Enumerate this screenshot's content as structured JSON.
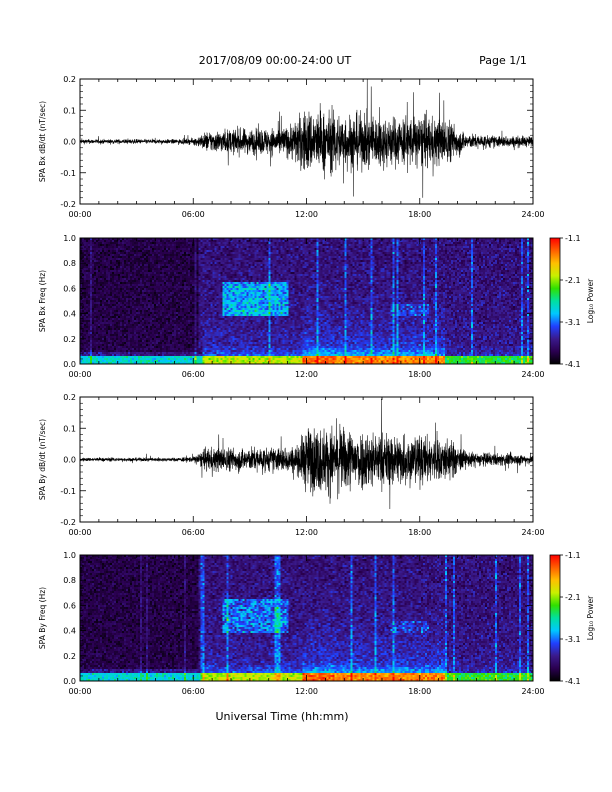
{
  "header": {
    "date_range": "2017/08/09  00:00-24:00 UT",
    "page": "Page 1/1"
  },
  "x_axis_title": "Universal Time (hh:mm)",
  "time_ticks": [
    "00:00",
    "06:00",
    "12:00",
    "18:00",
    "24:00"
  ],
  "colorbar": {
    "label": "Log₁₀ Power",
    "ticks": [
      "-1.1",
      "-2.1",
      "-3.1",
      "-4.1"
    ],
    "range": [
      -4.1,
      -1.1
    ],
    "colors": [
      "#000000",
      "#2a0050",
      "#3a1a8c",
      "#2040ff",
      "#00c8ff",
      "#00e0a0",
      "#30e000",
      "#c8f000",
      "#ffc000",
      "#ff6000",
      "#ff0000"
    ]
  },
  "chart_data": [
    {
      "type": "line",
      "ylabel": "SPA Bx dB/dt (nT/sec)",
      "ylim": [
        -0.2,
        0.2
      ],
      "yticks": [
        "0.2",
        "0.1",
        "0.0",
        "-0.1",
        "-0.2"
      ],
      "xlim_hours": [
        0,
        24
      ],
      "series": [
        {
          "amplitude_envelope": {
            "x_hours": [
              0,
              5,
              6,
              6.8,
              8,
              10,
              11,
              12,
              13,
              15,
              16,
              18,
              19.5,
              20.5,
              22,
              24
            ],
            "amp": [
              0.015,
              0.015,
              0.02,
              0.07,
              0.08,
              0.09,
              0.1,
              0.22,
              0.2,
              0.18,
              0.17,
              0.17,
              0.15,
              0.05,
              0.04,
              0.035
            ]
          }
        }
      ]
    },
    {
      "type": "heatmap",
      "ylabel": "SPA Bx Freq (Hz)",
      "ylim": [
        0.0,
        1.0
      ],
      "yticks": [
        "1.0",
        "0.8",
        "0.6",
        "0.4",
        "0.2",
        "0.0"
      ],
      "xlim_hours": [
        0,
        24
      ],
      "z_range_log10_power": [
        -4.1,
        -1.1
      ]
    },
    {
      "type": "line",
      "ylabel": "SPA By dB/dt (nT/sec)",
      "ylim": [
        -0.2,
        0.2
      ],
      "yticks": [
        "0.2",
        "0.1",
        "0.0",
        "-0.1",
        "-0.2"
      ],
      "xlim_hours": [
        0,
        24
      ],
      "series": [
        {
          "amplitude_envelope": {
            "x_hours": [
              0,
              5,
              6,
              6.8,
              8,
              10,
              11.5,
              12,
              13,
              15,
              16,
              18,
              19.5,
              20.5,
              22,
              24
            ],
            "amp": [
              0.012,
              0.012,
              0.02,
              0.08,
              0.08,
              0.08,
              0.09,
              0.22,
              0.22,
              0.2,
              0.18,
              0.16,
              0.14,
              0.05,
              0.04,
              0.035
            ]
          }
        }
      ]
    },
    {
      "type": "heatmap",
      "ylabel": "SPA By Freq (Hz)",
      "ylim": [
        0.0,
        1.0
      ],
      "yticks": [
        "1.0",
        "0.8",
        "0.6",
        "0.4",
        "0.2",
        "0.0"
      ],
      "xlim_hours": [
        0,
        24
      ],
      "z_range_log10_power": [
        -4.1,
        -1.1
      ]
    }
  ]
}
